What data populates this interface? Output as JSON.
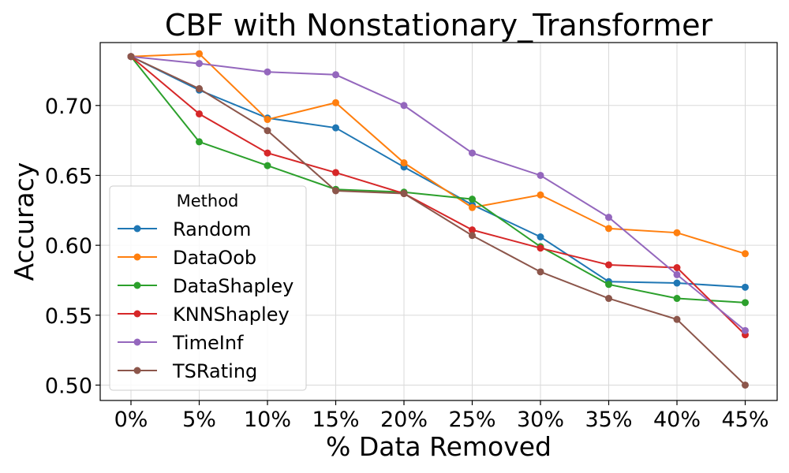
{
  "chart_data": {
    "type": "line",
    "title": "CBF with Nonstationary_Transformer",
    "xlabel": "% Data Removed",
    "ylabel": "Accuracy",
    "categories": [
      "0%",
      "5%",
      "10%",
      "15%",
      "20%",
      "25%",
      "30%",
      "35%",
      "40%",
      "45%"
    ],
    "ylim": [
      0.489,
      0.745
    ],
    "yticks": [
      0.5,
      0.55,
      0.6,
      0.65,
      0.7
    ],
    "ytick_labels": [
      "0.50",
      "0.55",
      "0.60",
      "0.65",
      "0.70"
    ],
    "grid": true,
    "legend": {
      "title": "Method",
      "position": "center-left"
    },
    "series": [
      {
        "name": "Random",
        "color": "#1f77b4",
        "values": [
          0.735,
          0.711,
          0.691,
          0.684,
          0.656,
          0.629,
          0.606,
          0.574,
          0.573,
          0.57
        ]
      },
      {
        "name": "DataOob",
        "color": "#ff7f0e",
        "values": [
          0.735,
          0.737,
          0.69,
          0.702,
          0.659,
          0.627,
          0.636,
          0.612,
          0.609,
          0.594
        ]
      },
      {
        "name": "DataShapley",
        "color": "#2ca02c",
        "values": [
          0.735,
          0.674,
          0.657,
          0.64,
          0.638,
          0.633,
          0.599,
          0.572,
          0.562,
          0.559
        ]
      },
      {
        "name": "KNNShapley",
        "color": "#d62728",
        "values": [
          0.735,
          0.694,
          0.666,
          0.652,
          0.637,
          0.611,
          0.598,
          0.586,
          0.584,
          0.536
        ]
      },
      {
        "name": "TimeInf",
        "color": "#9467bd",
        "values": [
          0.735,
          0.73,
          0.724,
          0.722,
          0.7,
          0.666,
          0.65,
          0.62,
          0.579,
          0.539
        ]
      },
      {
        "name": "TSRating",
        "color": "#8c564b",
        "values": [
          0.735,
          0.712,
          0.682,
          0.639,
          0.637,
          0.607,
          0.581,
          0.562,
          0.547,
          0.5
        ]
      }
    ]
  }
}
